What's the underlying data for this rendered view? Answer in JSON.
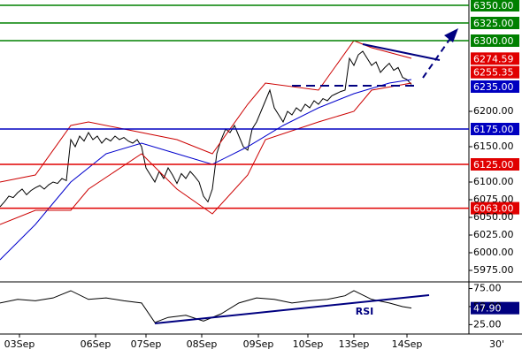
{
  "chart_data": [
    {
      "type": "line",
      "timeframe": "30'",
      "x": [
        0,
        1,
        2,
        3,
        4,
        5,
        6,
        7,
        8,
        9,
        10,
        11,
        12,
        13,
        14,
        15,
        16,
        17,
        18,
        19,
        20,
        21,
        22,
        23,
        24,
        25,
        26,
        27,
        28,
        29,
        30,
        31,
        32,
        33,
        34,
        35,
        36,
        37,
        38,
        39,
        40,
        41,
        42,
        43,
        44,
        45,
        46,
        47,
        48,
        49,
        50,
        51,
        52,
        53,
        54,
        55,
        56,
        57,
        58,
        59,
        60,
        61,
        62,
        63,
        64,
        65,
        66,
        67,
        68,
        69,
        70,
        71,
        72,
        73,
        74,
        75,
        76,
        77,
        78,
        79,
        80,
        81,
        82,
        83,
        84,
        85,
        86,
        87,
        88,
        89,
        90,
        91,
        92,
        93
      ],
      "xlim": [
        0,
        106
      ],
      "xticks": [
        {
          "value": 4.4,
          "label": "03Sep"
        },
        {
          "value": 21.6,
          "label": "06Sep"
        },
        {
          "value": 33,
          "label": "07Sep"
        },
        {
          "value": 45.6,
          "label": "08Sep"
        },
        {
          "value": 58.4,
          "label": "09Sep"
        },
        {
          "value": 69.6,
          "label": "10Sep"
        },
        {
          "value": 80,
          "label": "13Sep"
        },
        {
          "value": 92,
          "label": "14Sep"
        }
      ],
      "ylim": [
        5960,
        6357.5
      ],
      "yticks": [
        {
          "value": 5975,
          "label": "5975.00"
        },
        {
          "value": 6000,
          "label": "6000.00"
        },
        {
          "value": 6025,
          "label": "6025.00"
        },
        {
          "value": 6050,
          "label": "6050.00"
        },
        {
          "value": 6075,
          "label": "6075.00"
        },
        {
          "value": 6100,
          "label": "6100.00"
        },
        {
          "value": 6150,
          "label": "6150.00"
        },
        {
          "value": 6200,
          "label": "6200.00"
        }
      ],
      "levels": [
        {
          "value": 6350,
          "label": "6350.00",
          "color": "#008000",
          "line": true
        },
        {
          "value": 6325,
          "label": "6325.00",
          "color": "#008000",
          "line": true
        },
        {
          "value": 6300,
          "label": "6300.00",
          "color": "#008000",
          "line": true
        },
        {
          "value": 6274.59,
          "color": "#e00000",
          "line": false
        },
        {
          "value": 6255.35,
          "color": "#e00000",
          "line": false
        },
        {
          "value": 6235,
          "label": "6235.00",
          "color": "#0000c0",
          "line": false
        },
        {
          "value": 6175,
          "label": "6175.00",
          "color": "#0000c0",
          "line": true
        },
        {
          "value": 6125,
          "label": "6125.00",
          "color": "#e00000",
          "line": true
        },
        {
          "value": 6063,
          "label": "6063.00",
          "color": "#e00000",
          "line": true
        }
      ],
      "series": [
        {
          "color": "#000000",
          "values": [
            6065,
            6072,
            6080,
            6078,
            6085,
            6090,
            6082,
            6088,
            6092,
            6095,
            6090,
            6096,
            6100,
            6098,
            6105,
            6102,
            6160,
            6150,
            6165,
            6158,
            6170,
            6160,
            6165,
            6155,
            6162,
            6158,
            6165,
            6160,
            6163,
            6158,
            6155,
            6160,
            6150,
            6120,
            6110,
            6100,
            6115,
            6105,
            6120,
            6110,
            6098,
            6112,
            6105,
            6115,
            6108,
            6100,
            6080,
            6072,
            6090,
            6140,
            6160,
            6175,
            6170,
            6180,
            6165,
            6150,
            6145,
            6175,
            6185,
            6200,
            6215,
            6230,
            6205,
            6195,
            6185,
            6200,
            6195,
            6205,
            6200,
            6210,
            6205,
            6215,
            6210,
            6218,
            6215,
            6222,
            6225,
            6228,
            6230,
            6275,
            6265,
            6280,
            6285,
            6275,
            6265,
            6270,
            6255,
            6262,
            6268,
            6258,
            6262,
            6248,
            6245,
            6238
          ]
        },
        {
          "color": "#0000cc",
          "x": [
            0,
            8,
            16,
            24,
            32,
            40,
            48,
            56,
            64,
            72,
            80,
            88,
            93
          ],
          "values": [
            5990,
            6040,
            6100,
            6140,
            6155,
            6140,
            6125,
            6150,
            6180,
            6205,
            6225,
            6240,
            6245
          ]
        },
        {
          "color": "#cc0000",
          "x": [
            0,
            8,
            16,
            20,
            32,
            40,
            48,
            56,
            60,
            72,
            80,
            84,
            93
          ],
          "values": [
            6100,
            6110,
            6180,
            6185,
            6170,
            6160,
            6140,
            6210,
            6240,
            6230,
            6300,
            6290,
            6275
          ]
        },
        {
          "color": "#cc0000",
          "x": [
            0,
            8,
            16,
            20,
            32,
            40,
            48,
            56,
            60,
            72,
            80,
            84,
            93
          ],
          "values": [
            6040,
            6060,
            6060,
            6090,
            6140,
            6090,
            6055,
            6110,
            6160,
            6185,
            6200,
            6230,
            6240
          ]
        }
      ]
    },
    {
      "type": "line",
      "annotation": "RSI",
      "xlim": [
        0,
        106
      ],
      "ylim": [
        12,
        83
      ],
      "yticks": [
        {
          "value": 25,
          "label": "25.00"
        },
        {
          "value": 50,
          "label": "50.00"
        },
        {
          "value": 75,
          "label": "75.00"
        }
      ],
      "levels": [
        {
          "value": 47.9,
          "label": "47.90",
          "color": "#000080",
          "line": false
        }
      ],
      "series": [
        {
          "color": "#000000",
          "x": [
            0,
            4,
            8,
            12,
            16,
            20,
            24,
            28,
            32,
            35,
            38,
            42,
            46,
            50,
            54,
            58,
            62,
            66,
            70,
            74,
            78,
            80,
            84,
            88,
            91,
            93
          ],
          "values": [
            55,
            60,
            58,
            62,
            72,
            60,
            62,
            58,
            55,
            28,
            35,
            38,
            30,
            40,
            55,
            62,
            60,
            55,
            58,
            60,
            65,
            72,
            60,
            55,
            50,
            47.9
          ]
        }
      ]
    }
  ]
}
